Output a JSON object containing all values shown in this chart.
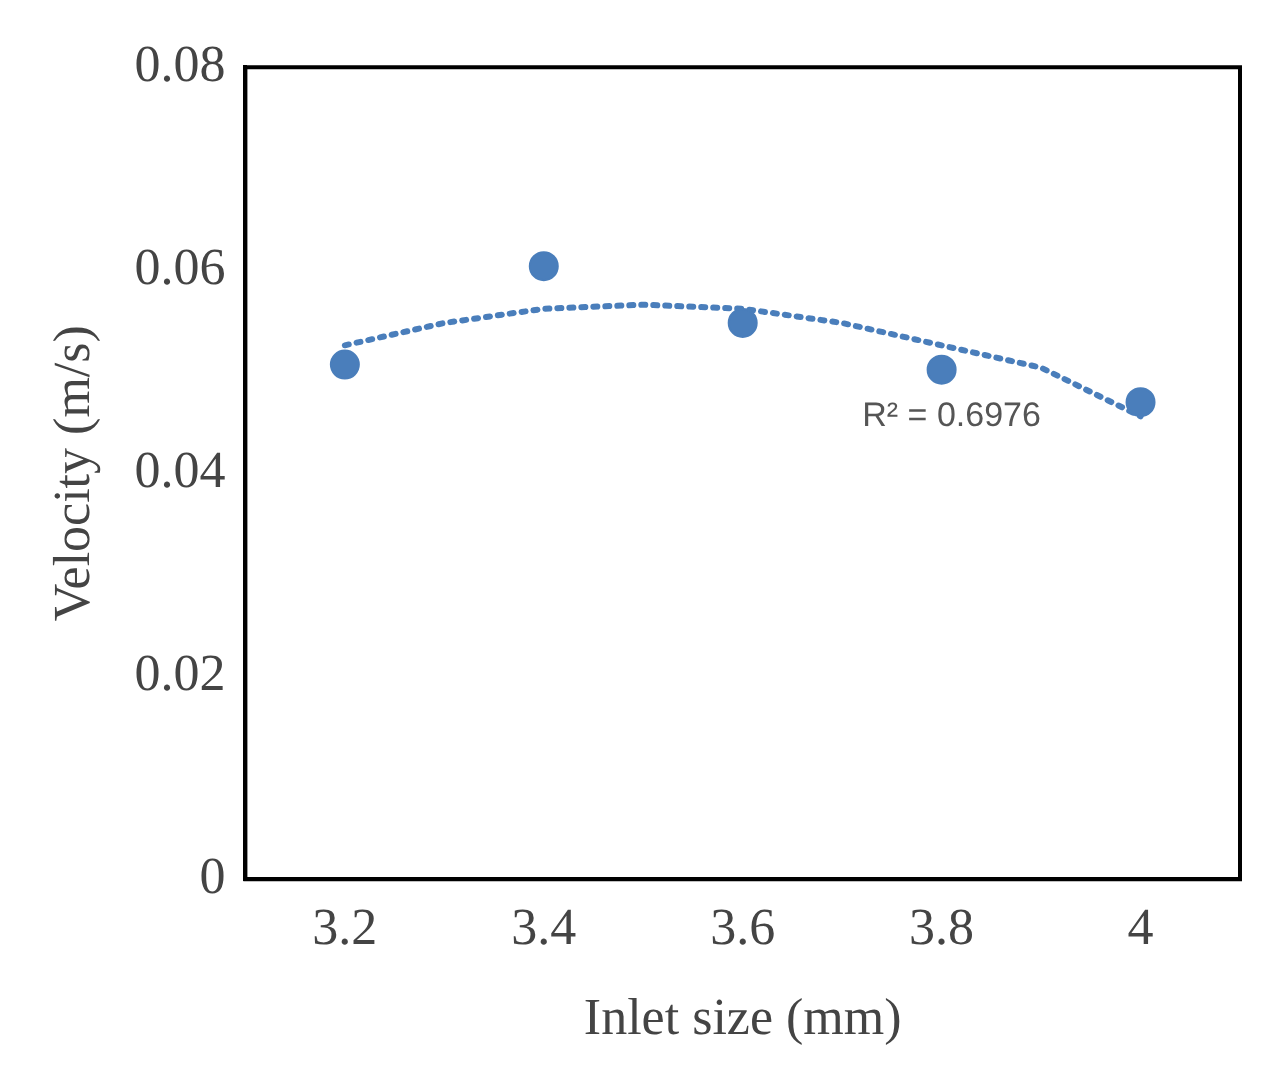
{
  "chart_data": {
    "type": "scatter",
    "xlabel": "Inlet size (mm)",
    "ylabel": "Velocity (m/s)",
    "xlim": [
      3.1,
      4.1
    ],
    "xticks": [
      3.2,
      3.4,
      3.6,
      3.8,
      4
    ],
    "ylim": [
      0,
      0.08
    ],
    "yticks": [
      0,
      0.02,
      0.04,
      0.06,
      0.08
    ],
    "grid": false,
    "legend": false,
    "marker": "circle",
    "series": [
      {
        "x": [
          3.2,
          3.4,
          3.6,
          3.8,
          4
        ],
        "values": [
          0.0507,
          0.0604,
          0.0548,
          0.0502,
          0.047
        ],
        "color": "#4a7ebb"
      },
      {
        "type": "line",
        "line_style": "dotted",
        "marker": "none",
        "x": [
          3.2,
          3.3,
          3.4,
          3.5,
          3.6,
          3.7,
          3.8,
          3.9,
          4
        ],
        "values": [
          0.0526,
          0.0548,
          0.0562,
          0.0566,
          0.0562,
          0.0548,
          0.0526,
          0.0504,
          0.0456
        ],
        "color": "#4a7ebb"
      }
    ],
    "annotations": [
      "R² = 0.6976"
    ]
  }
}
